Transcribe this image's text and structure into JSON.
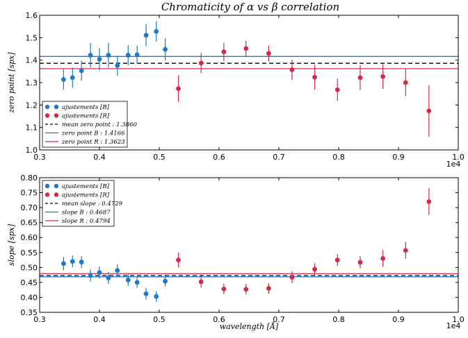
{
  "title": "Chromaticity of α vs β correlation",
  "colors": {
    "blue": "#1f78c8",
    "red": "#d42a4a",
    "mean": "#000000"
  },
  "x_axis": {
    "label": "wavelength [Å]",
    "offset_label": "1e4",
    "range": [
      0.3,
      1.0
    ],
    "ticks": [
      "0.3",
      "0.4",
      "0.5",
      "0.6",
      "0.7",
      "0.8",
      "0.9",
      "1.0"
    ]
  },
  "chart_data": [
    {
      "type": "scatter",
      "ylabel": "zero point [spx]",
      "xlim": [
        0.3,
        1.0
      ],
      "ylim": [
        1.0,
        1.6
      ],
      "yticks": [
        "1.0",
        "1.1",
        "1.2",
        "1.3",
        "1.4",
        "1.5",
        "1.6"
      ],
      "legend": {
        "position": "lower-left",
        "entries": [
          {
            "label": "ajustements [B]",
            "kind": "points",
            "color": "blue"
          },
          {
            "label": "ajustements [R]",
            "kind": "points",
            "color": "red"
          },
          {
            "label": "mean zero point : 1.3860",
            "kind": "dash",
            "color": "mean"
          },
          {
            "label": "zero point B : 1.4166",
            "kind": "line",
            "color": "blue"
          },
          {
            "label": "zero point R : 1.3623",
            "kind": "line",
            "color": "red"
          }
        ]
      },
      "hlines": [
        {
          "y": 1.386,
          "color": "mean",
          "dashed": true
        },
        {
          "y": 1.4166,
          "color": "blue",
          "dashed": false
        },
        {
          "y": 1.3623,
          "color": "red",
          "dashed": false
        }
      ],
      "series": [
        {
          "name": "ajustements [B]",
          "color": "blue",
          "x": [
            0.34,
            0.355,
            0.37,
            0.385,
            0.4,
            0.415,
            0.43,
            0.448,
            0.463,
            0.478,
            0.495,
            0.51
          ],
          "y": [
            1.314,
            1.322,
            1.353,
            1.422,
            1.404,
            1.422,
            1.376,
            1.422,
            1.424,
            1.511,
            1.528,
            1.448
          ],
          "err": [
            0.045,
            0.045,
            0.045,
            0.055,
            0.05,
            0.055,
            0.045,
            0.045,
            0.04,
            0.05,
            0.045,
            0.05
          ]
        },
        {
          "name": "ajustements [R]",
          "color": "red",
          "x": [
            0.532,
            0.57,
            0.608,
            0.645,
            0.683,
            0.722,
            0.76,
            0.798,
            0.836,
            0.874,
            0.912,
            0.951
          ],
          "y": [
            1.273,
            1.387,
            1.437,
            1.452,
            1.43,
            1.357,
            1.324,
            1.268,
            1.322,
            1.327,
            1.3,
            1.174
          ],
          "err": [
            0.06,
            0.045,
            0.04,
            0.035,
            0.035,
            0.045,
            0.055,
            0.05,
            0.055,
            0.055,
            0.06,
            0.115
          ]
        }
      ]
    },
    {
      "type": "scatter",
      "ylabel": "slope [spx]",
      "xlim": [
        0.3,
        1.0
      ],
      "ylim": [
        0.35,
        0.8
      ],
      "yticks": [
        "0.35",
        "0.40",
        "0.45",
        "0.50",
        "0.55",
        "0.60",
        "0.65",
        "0.70",
        "0.75",
        "0.80"
      ],
      "legend": {
        "position": "upper-left",
        "entries": [
          {
            "label": "ajustements [B]",
            "kind": "points",
            "color": "blue"
          },
          {
            "label": "ajustements [R]",
            "kind": "points",
            "color": "red"
          },
          {
            "label": "mean slope : 0.4729",
            "kind": "dash",
            "color": "mean"
          },
          {
            "label": "slope B : 0.4687",
            "kind": "line",
            "color": "blue"
          },
          {
            "label": "slope R : 0.4794",
            "kind": "line",
            "color": "red"
          }
        ]
      },
      "hlines": [
        {
          "y": 0.4729,
          "color": "mean",
          "dashed": true
        },
        {
          "y": 0.4687,
          "color": "blue",
          "dashed": false
        },
        {
          "y": 0.4794,
          "color": "red",
          "dashed": false
        }
      ],
      "series": [
        {
          "name": "ajustements [B]",
          "color": "blue",
          "x": [
            0.34,
            0.355,
            0.37,
            0.385,
            0.4,
            0.415,
            0.43,
            0.448,
            0.463,
            0.478,
            0.495,
            0.51
          ],
          "y": [
            0.513,
            0.52,
            0.518,
            0.473,
            0.483,
            0.465,
            0.49,
            0.458,
            0.45,
            0.412,
            0.403,
            0.454
          ],
          "err": [
            0.022,
            0.02,
            0.02,
            0.02,
            0.02,
            0.02,
            0.02,
            0.02,
            0.018,
            0.02,
            0.018,
            0.018
          ]
        },
        {
          "name": "ajustements [R]",
          "color": "red",
          "x": [
            0.532,
            0.57,
            0.608,
            0.645,
            0.683,
            0.722,
            0.76,
            0.798,
            0.836,
            0.874,
            0.912,
            0.951
          ],
          "y": [
            0.525,
            0.452,
            0.428,
            0.427,
            0.43,
            0.467,
            0.494,
            0.525,
            0.517,
            0.53,
            0.557,
            0.72
          ],
          "err": [
            0.025,
            0.02,
            0.018,
            0.018,
            0.018,
            0.02,
            0.02,
            0.02,
            0.02,
            0.028,
            0.028,
            0.045
          ]
        }
      ]
    }
  ]
}
